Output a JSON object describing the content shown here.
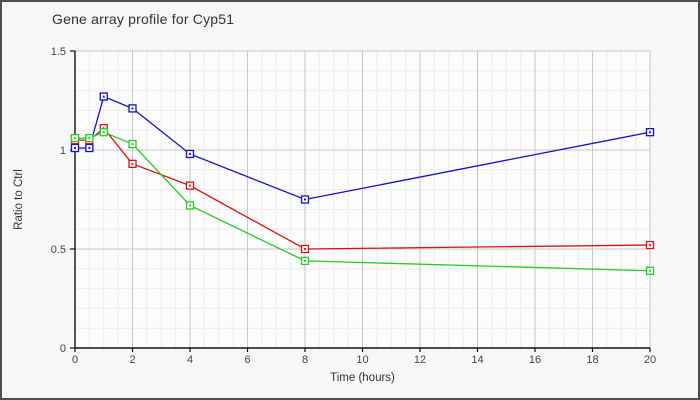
{
  "window": {
    "background": "#f7f7f7",
    "border_color": "#4f4f4f"
  },
  "chart_data": {
    "type": "line",
    "title": "Gene array profile for Cyp51",
    "xlabel": "Time (hours)",
    "ylabel": "Ratio to Ctrl",
    "xlim": [
      0,
      20
    ],
    "ylim": [
      0,
      1.5
    ],
    "x_major_ticks": [
      0,
      2,
      4,
      6,
      8,
      10,
      12,
      14,
      16,
      18,
      20
    ],
    "x_tick_labels": [
      "0",
      "2",
      "4",
      "6",
      "8",
      "10",
      "12",
      "14",
      "16",
      "18",
      "20"
    ],
    "y_major_ticks": [
      0,
      0.5,
      1,
      1.5
    ],
    "y_tick_labels": [
      "0",
      "0.5",
      "1",
      "1.5"
    ],
    "x_minor_step": 0.5,
    "y_minor_step": 0.1,
    "grid": true,
    "legend": false,
    "x": [
      0,
      0.5,
      1,
      2,
      4,
      8,
      20
    ],
    "series": [
      {
        "name": "blue",
        "color": "#1010cc",
        "marker": "open-square",
        "values": [
          1.01,
          1.01,
          1.27,
          1.21,
          0.98,
          0.75,
          1.09
        ]
      },
      {
        "name": "red",
        "color": "#dd1111",
        "marker": "open-square",
        "values": [
          1.05,
          1.05,
          1.11,
          0.93,
          0.82,
          0.5,
          0.52
        ]
      },
      {
        "name": "green",
        "color": "#22cc22",
        "marker": "open-square",
        "values": [
          1.06,
          1.06,
          1.09,
          1.03,
          0.72,
          0.44,
          0.39
        ]
      }
    ],
    "plot_background": "#fcfcfc",
    "grid_minor_color": "#ececec",
    "grid_major_color": "#c6c6c6",
    "axis_color": "#111111",
    "tick_label_color": "#444444",
    "axis_label_color": "#333333",
    "title_color": "#333333"
  }
}
